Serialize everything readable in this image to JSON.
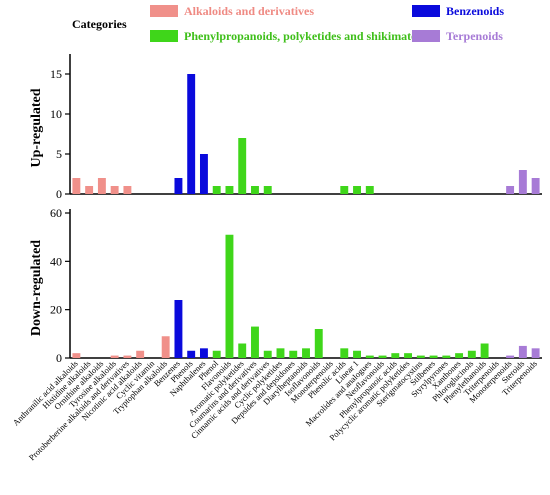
{
  "chart_data": {
    "type": "bar",
    "legend_title": "Categories",
    "categories_legend": [
      {
        "name": "Alkaloids and derivatives",
        "color": "#f0908a"
      },
      {
        "name": "Phenylpropanoids, polyketides and shikimates",
        "color": "#3fd61a"
      },
      {
        "name": "Benzenoids",
        "color": "#0a0adc"
      },
      {
        "name": "Terpenoids",
        "color": "#a77bd6"
      }
    ],
    "categories": [
      "Anthranilic acid alkaloids",
      "Histidine alkaloids",
      "Ornithine alkaloids",
      "Tyrosine alkaloids",
      "Protoberberine alkaloids and derivatives",
      "Nicotinic acid alkaloids",
      "Cyclic vitamin",
      "Tryptophan alkaloids",
      "Benzenes",
      "Phenols",
      "Naphthalenes",
      "Phenol",
      "Flavonoids",
      "Aromatic polyketides",
      "Coumarins and derivatives",
      "Cinnamic acids and derivatives",
      "Cyclic polyketides",
      "Depsides and depsidones",
      "Diarylheptanoids",
      "Isoflavonoids",
      "Monoterpenoids",
      "Phenolic acids",
      "Linear 1",
      "Macrolides and analogues",
      "Neoflavonoids",
      "Phenylpropanoic acids",
      "Polycyclic aromatic polyketides",
      "Sterigmatocystins",
      "Stilbenes",
      "Styrylpyrones",
      "Xanthones",
      "Phloroglucinols",
      "Phenylethanoids",
      "Triterpenoids",
      "Monoterpenoids",
      "Steroids",
      "Triterpenoids"
    ],
    "group": [
      "alk",
      "alk",
      "alk",
      "alk",
      "alk",
      "alk",
      "alk",
      "alk",
      "ben",
      "ben",
      "ben",
      "phe",
      "phe",
      "phe",
      "phe",
      "phe",
      "phe",
      "phe",
      "phe",
      "phe",
      "phe",
      "phe",
      "phe",
      "phe",
      "phe",
      "phe",
      "phe",
      "phe",
      "phe",
      "phe",
      "phe",
      "phe",
      "phe",
      "ter",
      "ter",
      "ter",
      "ter"
    ],
    "panels": [
      {
        "ylabel": "Up-regulated",
        "ylim": [
          0,
          17
        ],
        "yticks": [
          0,
          5,
          10,
          15
        ],
        "values": [
          2,
          1,
          2,
          1,
          1,
          0,
          0,
          0,
          2,
          15,
          5,
          1,
          1,
          7,
          1,
          1,
          0,
          0,
          0,
          0,
          0,
          1,
          1,
          1,
          0,
          0,
          0,
          0,
          0,
          0,
          0,
          0,
          0,
          0,
          1,
          3,
          2
        ]
      },
      {
        "ylabel": "Down-regulated",
        "ylim": [
          0,
          60
        ],
        "yticks": [
          0,
          20,
          40,
          60
        ],
        "values": [
          2,
          0,
          0,
          1,
          1,
          3,
          0,
          9,
          24,
          3,
          4,
          3,
          51,
          6,
          13,
          3,
          4,
          3,
          4,
          12,
          0,
          4,
          3,
          1,
          1,
          2,
          2,
          1,
          1,
          1,
          2,
          3,
          6,
          0,
          1,
          5,
          4
        ]
      }
    ]
  }
}
